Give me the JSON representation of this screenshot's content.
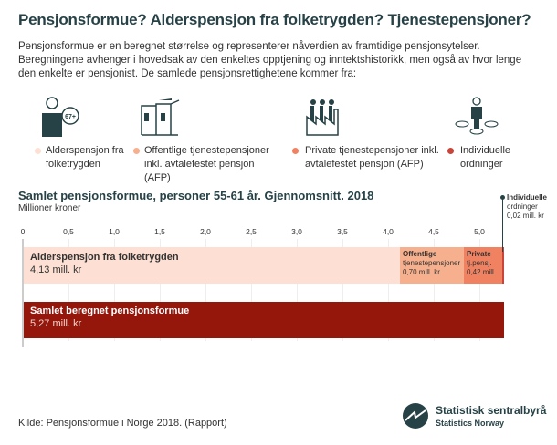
{
  "title": "Pensjonsformue? Alderspensjon fra folketrygden? Tjenestepensjoner?",
  "intro": "Pensjonsformue er en beregnet størrelse og representerer nåverdien av framtidige pensjonsytelser. Beregningene avhenger i hovedsak av den enkeltes opptjening og inntektshistorikk, men også av hvor lenge den enkelte er pensjonist. De samlede pensjonsrettighetene kommer fra:",
  "legend": [
    {
      "label": "Alderspensjon fra folketrygden",
      "color": "#fde0d3",
      "icon": "person-67-plus-icon",
      "badge": "67+"
    },
    {
      "label": "Offentlige tjenestepensjoner inkl. avtalefestet pensjon (AFP)",
      "color": "#f7b08e",
      "icon": "public-building-icon"
    },
    {
      "label": "Private tjenestepensjoner inkl. avtalefestet pensjon (AFP)",
      "color": "#f08262",
      "icon": "factory-icon"
    },
    {
      "label": "Individuelle ordninger",
      "color": "#c9453a",
      "icon": "person-choices-icon"
    }
  ],
  "chart_data": {
    "type": "bar",
    "title": "Samlet pensjonsformue, personer 55-61 år. Gjennomsnitt. 2018",
    "ylabel": "Millioner kroner",
    "xlim": [
      0,
      5.27
    ],
    "ticks": [
      "0",
      "0,5",
      "1,0",
      "1,5",
      "2,0",
      "2,5",
      "3,0",
      "3,5",
      "4,0",
      "4,5",
      "5,0"
    ],
    "tick_values": [
      0,
      0.5,
      1,
      1.5,
      2,
      2.5,
      3,
      3.5,
      4,
      4.5,
      5
    ],
    "grid": true,
    "stacked": [
      {
        "name": "Alderspensjon fra folketrygden",
        "value": 4.13,
        "label": "4,13 mill. kr",
        "color": "#fde0d3"
      },
      {
        "name": "Offentlige",
        "name2": "tjenestepensjoner",
        "value": 0.7,
        "label": "0,70 mill. kr",
        "color": "#f7b08e"
      },
      {
        "name": "Private",
        "name2": "tj.pensj.",
        "value": 0.42,
        "label": "0,42 mill.",
        "color": "#f08262"
      },
      {
        "name": "Individuelle",
        "name2": "ordninger",
        "value": 0.02,
        "label": "0,02 mill. kr",
        "color": "#c9453a"
      }
    ],
    "total": {
      "name": "Samlet beregnet pensjonsformue",
      "value": 5.27,
      "label": "5,27 mill. kr",
      "color": "#95170c"
    }
  },
  "source": "Kilde: Pensjonsformue i Norge 2018. (Rapport)",
  "logo": {
    "name": "Statistisk sentralbyrå",
    "sub": "Statistics Norway"
  }
}
